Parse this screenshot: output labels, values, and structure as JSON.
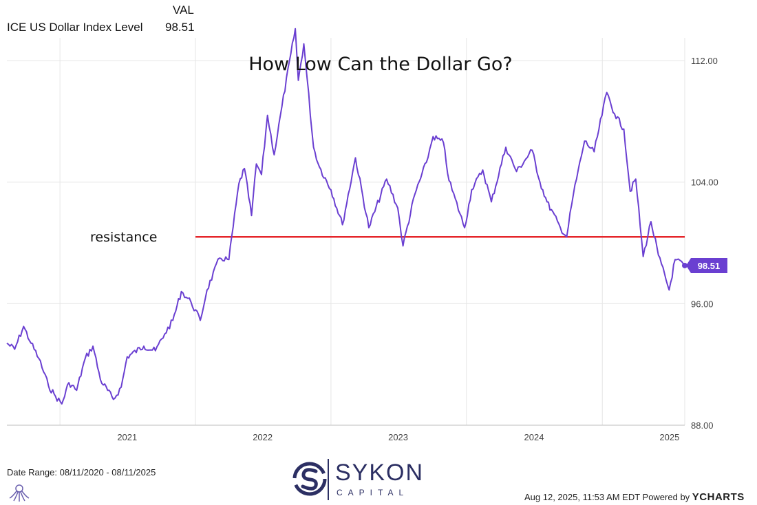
{
  "legend": {
    "column_header": "VAL",
    "series_name": "ICE US Dollar Index Level",
    "series_value": "98.51"
  },
  "annotation": {
    "resistance_label": "resistance"
  },
  "footer": {
    "date_range": "Date Range: 08/11/2020 - 08/11/2025",
    "timestamp": "Aug 12, 2025, 11:53 AM EDT Powered by",
    "brand": "YCHARTS"
  },
  "logo": {
    "name": "SYKON",
    "sub": "CAPITAL"
  },
  "colors": {
    "series": "#6a3fd1",
    "resistance": "#e5252a",
    "grid": "#e6e6e6",
    "logo": "#2c2f63"
  },
  "chart_data": {
    "type": "line",
    "title": "How Low Can the Dollar Go?",
    "xlabel": "",
    "ylabel": "",
    "x_tick_labels": [
      "2021",
      "2022",
      "2023",
      "2024",
      "2025"
    ],
    "y_tick_labels": [
      "88.00",
      "96.00",
      "104.00",
      "112.00"
    ],
    "ylim": [
      88,
      113.5
    ],
    "xlim": [
      "2020-08-11",
      "2025-08-11"
    ],
    "y_axis_position": "right",
    "grid": true,
    "last_value_label": "98.51",
    "resistance_level": 100.4,
    "series": [
      {
        "name": "ICE US Dollar Index Level",
        "x": [
          "2020-08-11",
          "2020-09-01",
          "2020-09-25",
          "2020-10-15",
          "2020-11-05",
          "2020-12-01",
          "2020-12-20",
          "2021-01-06",
          "2021-01-25",
          "2021-02-15",
          "2021-03-10",
          "2021-03-31",
          "2021-04-20",
          "2021-05-25",
          "2021-06-15",
          "2021-07-01",
          "2021-08-15",
          "2021-09-15",
          "2021-10-10",
          "2021-11-01",
          "2021-11-24",
          "2021-12-20",
          "2022-01-14",
          "2022-02-01",
          "2022-03-07",
          "2022-04-01",
          "2022-04-28",
          "2022-05-13",
          "2022-06-01",
          "2022-06-14",
          "2022-06-28",
          "2022-07-14",
          "2022-08-01",
          "2022-08-22",
          "2022-09-27",
          "2022-10-05",
          "2022-10-20",
          "2022-11-15",
          "2022-12-01",
          "2023-01-01",
          "2023-02-01",
          "2023-03-08",
          "2023-04-13",
          "2023-05-31",
          "2023-06-30",
          "2023-07-14",
          "2023-08-15",
          "2023-09-15",
          "2023-10-03",
          "2023-10-31",
          "2023-11-15",
          "2023-12-27",
          "2024-01-15",
          "2024-02-14",
          "2024-03-08",
          "2024-04-16",
          "2024-05-15",
          "2024-06-26",
          "2024-07-17",
          "2024-08-05",
          "2024-09-10",
          "2024-09-27",
          "2024-10-15",
          "2024-11-14",
          "2024-12-10",
          "2025-01-13",
          "2025-02-03",
          "2025-02-28",
          "2025-03-17",
          "2025-04-01",
          "2025-04-21",
          "2025-05-12",
          "2025-06-01",
          "2025-06-30",
          "2025-07-16",
          "2025-08-11"
        ],
        "values": [
          93.4,
          93.0,
          94.5,
          93.4,
          92.4,
          90.6,
          89.9,
          89.4,
          90.8,
          90.3,
          92.4,
          93.2,
          91.0,
          89.7,
          90.5,
          92.5,
          93.2,
          92.9,
          94.0,
          94.9,
          96.8,
          96.1,
          94.9,
          96.9,
          99.0,
          98.9,
          103.9,
          104.9,
          101.8,
          105.2,
          104.5,
          108.4,
          105.8,
          109.0,
          114.1,
          110.7,
          113.1,
          106.3,
          105.0,
          103.5,
          101.2,
          105.6,
          101.0,
          104.2,
          102.3,
          99.8,
          103.2,
          105.3,
          107.0,
          106.6,
          104.1,
          101.0,
          103.5,
          104.8,
          102.7,
          106.3,
          104.7,
          106.1,
          104.0,
          102.7,
          101.0,
          100.4,
          103.2,
          106.7,
          106.0,
          109.9,
          108.5,
          107.5,
          103.4,
          104.2,
          99.1,
          101.4,
          99.2,
          96.9,
          98.9,
          98.51
        ]
      }
    ]
  }
}
